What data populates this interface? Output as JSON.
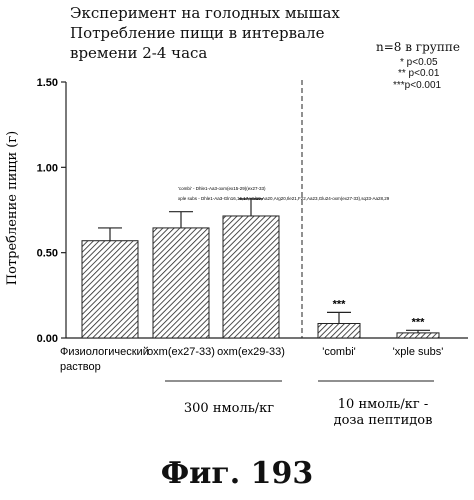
{
  "header": {
    "title_line1": "Эксперимент на голодных мышах",
    "title_line2": "Потребление пищи в интервале",
    "title_line3": "времени 2-4 часа"
  },
  "legend": {
    "n_label": "n=8 в группе",
    "sig1": "* p<0.05",
    "sig2": "** p<0.01",
    "sig3": "***p<0.001"
  },
  "annotation": {
    "line1": "'combi' - Dhle1-Aa3-oxm(ex15-29)(ex27-33)",
    "line2": "xple subs - Dhle1-Aa3-Gln16,16,17,Val19,Aa20,Arg20,Ile21,F22,Aa23,Glu24-oxm(ex27-33),sq33-Aa28,29"
  },
  "group_labels": {
    "group1": "300 нмоль/кг",
    "group2_line1": "10 нмоль/кг -",
    "group2_line2": "доза пептидов"
  },
  "figure_label": "Фиг. 193",
  "chart_data": {
    "type": "bar",
    "title": "",
    "ylabel": "Потребление пищи (г)",
    "xlabel": "",
    "ylim": [
      0,
      1.5
    ],
    "yticks": [
      "0.00",
      "0.50",
      "1.00",
      "1.50"
    ],
    "categories": [
      "Физиологический раствор",
      "oxm(ex27-33)",
      "oxm(ex29-33)",
      "'combi'",
      "'xple subs'"
    ],
    "category_lines": [
      [
        "Физиологический",
        "раствор"
      ],
      [
        "oxm(ex27-33)"
      ],
      [
        "oxm(ex29-33)"
      ],
      [
        "'combi'"
      ],
      [
        "'xple subs'"
      ]
    ],
    "values": [
      0.57,
      0.645,
      0.715,
      0.085,
      0.03
    ],
    "errors": [
      0.075,
      0.095,
      0.1,
      0.065,
      0.015
    ],
    "significance": [
      "",
      "",
      "",
      "***",
      "***"
    ],
    "grid": false,
    "legend_position": "top-right"
  }
}
